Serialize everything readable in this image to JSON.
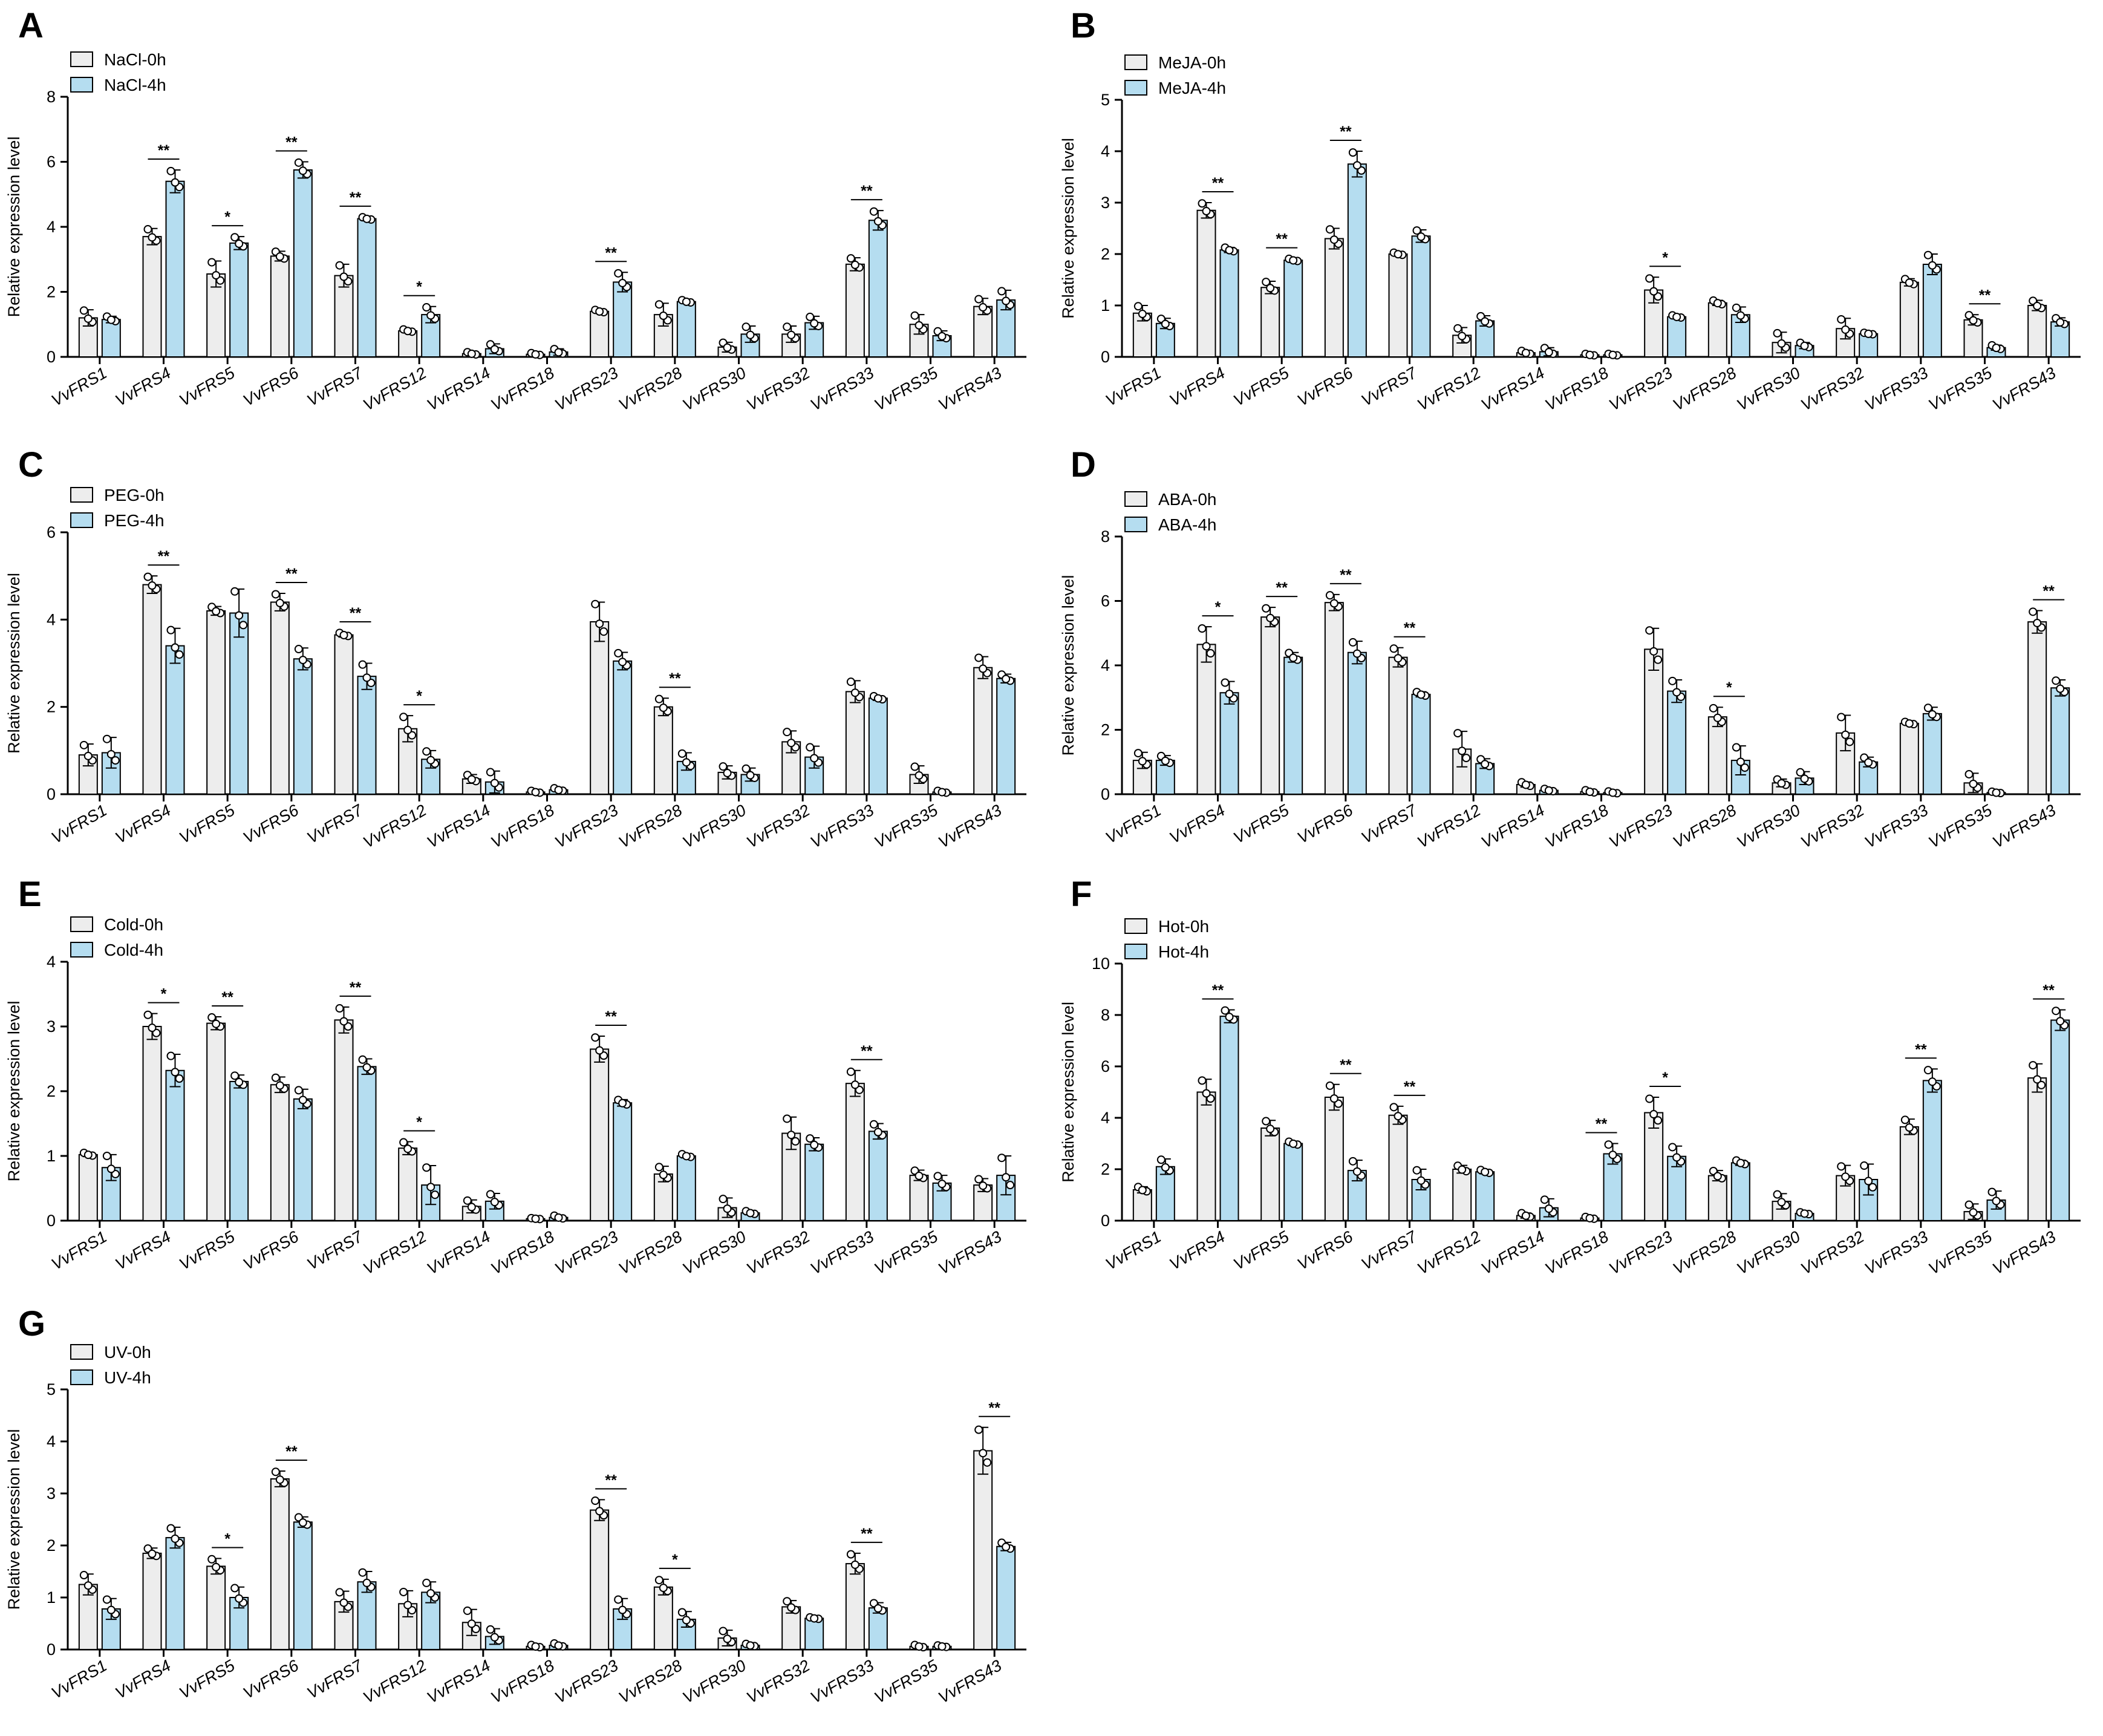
{
  "colors": {
    "bar0": "#ededed",
    "bar1": "#b5ddf0",
    "stroke": "#000000"
  },
  "categories": [
    "VvFRS1",
    "VvFRS4",
    "VvFRS5",
    "VvFRS6",
    "VvFRS7",
    "VvFRS12",
    "VvFRS14",
    "VvFRS18",
    "VvFRS23",
    "VvFRS28",
    "VvFRS30",
    "VvFRS32",
    "VvFRS33",
    "VvFRS35",
    "VvFRS43"
  ],
  "chart_data": [
    {
      "type": "bar",
      "panel": "A",
      "ylabel": "Relative expression level",
      "ylim": [
        0,
        8
      ],
      "yticks": [
        0,
        2,
        4,
        6,
        8
      ],
      "legend": [
        "NaCl-0h",
        "NaCl-4h"
      ],
      "series": [
        {
          "name": "NaCl-0h",
          "values": [
            1.2,
            3.7,
            2.55,
            3.1,
            2.5,
            0.8,
            0.1,
            0.08,
            1.4,
            1.3,
            0.3,
            0.7,
            2.85,
            1.0,
            1.55
          ],
          "errors": [
            0.25,
            0.25,
            0.4,
            0.15,
            0.35,
            0.05,
            0.05,
            0.04,
            0.05,
            0.35,
            0.15,
            0.25,
            0.2,
            0.3,
            0.25
          ]
        },
        {
          "name": "NaCl-4h",
          "values": [
            1.15,
            5.4,
            3.5,
            5.75,
            4.25,
            1.3,
            0.25,
            0.15,
            2.3,
            1.7,
            0.7,
            1.05,
            4.2,
            0.65,
            1.75
          ],
          " errors": [
            0.1,
            0.35,
            0.2,
            0.25,
            0.05,
            0.25,
            0.15,
            0.1,
            0.3,
            0.05,
            0.25,
            0.2,
            0.3,
            0.15,
            0.3
          ]
        }
      ],
      "significance": [
        {
          "index": 1,
          "label": "**"
        },
        {
          "index": 2,
          "label": "*"
        },
        {
          "index": 3,
          "label": "**"
        },
        {
          "index": 4,
          "label": "**"
        },
        {
          "index": 5,
          "label": "*"
        },
        {
          "index": 8,
          "label": "**"
        },
        {
          "index": 12,
          "label": "**"
        }
      ]
    },
    {
      "type": "bar",
      "panel": "B",
      "ylabel": "Relative expression level",
      "ylim": [
        0,
        5
      ],
      "yticks": [
        0,
        1,
        2,
        3,
        4,
        5
      ],
      "legend": [
        "MeJA-0h",
        "MeJA-4h"
      ],
      "series": [
        {
          "name": "MeJA-0h",
          "values": [
            0.85,
            2.85,
            1.35,
            2.3,
            2.0,
            0.42,
            0.08,
            0.04,
            1.3,
            1.05,
            0.28,
            0.55,
            1.45,
            0.72,
            1.0
          ],
          "errors": [
            0.15,
            0.15,
            0.12,
            0.2,
            0.03,
            0.15,
            0.04,
            0.02,
            0.25,
            0.05,
            0.2,
            0.2,
            0.07,
            0.1,
            0.1
          ]
        },
        {
          "name": "MeJA-4h",
          "values": [
            0.65,
            2.08,
            1.88,
            3.75,
            2.35,
            0.7,
            0.1,
            0.04,
            0.78,
            0.82,
            0.22,
            0.45,
            1.8,
            0.18,
            0.68
          ],
          " errors": [
            0.1,
            0.05,
            0.03,
            0.25,
            0.12,
            0.1,
            0.08,
            0.02,
            0.03,
            0.15,
            0.06,
            0.02,
            0.2,
            0.05,
            0.08
          ]
        }
      ],
      "significance": [
        {
          "index": 1,
          "label": "**"
        },
        {
          "index": 2,
          "label": "**"
        },
        {
          "index": 3,
          "label": "**"
        },
        {
          "index": 8,
          "label": "*"
        },
        {
          "index": 13,
          "label": "**"
        }
      ]
    },
    {
      "type": "bar",
      "panel": "C",
      "ylabel": "Relative expression level",
      "ylim": [
        0,
        6
      ],
      "yticks": [
        0,
        2,
        4,
        6
      ],
      "legend": [
        "PEG-0h",
        "PEG-4h"
      ],
      "series": [
        {
          "name": "PEG-0h",
          "values": [
            0.9,
            4.8,
            4.2,
            4.4,
            3.65,
            1.5,
            0.35,
            0.05,
            3.95,
            2.0,
            0.5,
            1.2,
            2.35,
            0.45,
            2.9
          ],
          "errors": [
            0.25,
            0.2,
            0.1,
            0.2,
            0.05,
            0.3,
            0.1,
            0.03,
            0.45,
            0.2,
            0.15,
            0.25,
            0.25,
            0.2,
            0.25
          ]
        },
        {
          "name": "PEG-4h",
          "values": [
            0.95,
            3.4,
            4.15,
            3.1,
            2.7,
            0.8,
            0.28,
            0.1,
            3.05,
            0.75,
            0.45,
            0.85,
            2.2,
            0.05,
            2.65
          ],
          " errors": [
            0.35,
            0.4,
            0.55,
            0.25,
            0.3,
            0.2,
            0.25,
            0.04,
            0.2,
            0.2,
            0.15,
            0.25,
            0.05,
            0.03,
            0.1
          ]
        }
      ],
      "significance": [
        {
          "index": 1,
          "label": "**"
        },
        {
          "index": 3,
          "label": "**"
        },
        {
          "index": 4,
          "label": "**"
        },
        {
          "index": 5,
          "label": "*"
        },
        {
          "index": 9,
          "label": "**"
        }
      ]
    },
    {
      "type": "bar",
      "panel": "D",
      "ylabel": "Relative expression level",
      "ylim": [
        0,
        8
      ],
      "yticks": [
        0,
        2,
        4,
        6,
        8
      ],
      "legend": [
        "ABA-0h",
        "ABA-4h"
      ],
      "series": [
        {
          "name": "ABA-0h",
          "values": [
            1.05,
            4.65,
            5.5,
            5.95,
            4.25,
            1.4,
            0.3,
            0.08,
            4.5,
            2.4,
            0.35,
            1.9,
            2.2,
            0.35,
            5.35
          ],
          "errors": [
            0.25,
            0.55,
            0.3,
            0.25,
            0.3,
            0.55,
            0.08,
            0.05,
            0.65,
            0.3,
            0.12,
            0.55,
            0.05,
            0.3,
            0.35
          ]
        },
        {
          "name": "ABA-4h",
          "values": [
            1.05,
            3.15,
            4.25,
            4.4,
            3.1,
            0.95,
            0.12,
            0.05,
            3.2,
            1.05,
            0.5,
            1.0,
            2.5,
            0.05,
            3.3
          ],
          " errors": [
            0.15,
            0.35,
            0.15,
            0.35,
            0.08,
            0.15,
            0.05,
            0.04,
            0.35,
            0.45,
            0.2,
            0.15,
            0.2,
            0.03,
            0.25
          ]
        }
      ],
      "significance": [
        {
          "index": 1,
          "label": "*"
        },
        {
          "index": 2,
          "label": "**"
        },
        {
          "index": 3,
          "label": "**"
        },
        {
          "index": 4,
          "label": "**"
        },
        {
          "index": 9,
          "label": "*"
        },
        {
          "index": 14,
          "label": "**"
        }
      ]
    },
    {
      "type": "bar",
      "panel": "E",
      "ylabel": "Relative expression level",
      "ylim": [
        0,
        4
      ],
      "yticks": [
        0,
        1,
        2,
        3,
        4
      ],
      "legend": [
        "Cold-0h",
        "Cold-4h"
      ],
      "series": [
        {
          "name": "Cold-0h",
          "values": [
            1.02,
            3.0,
            3.05,
            2.1,
            3.1,
            1.12,
            0.22,
            0.03,
            2.65,
            0.72,
            0.2,
            1.35,
            2.12,
            0.7,
            0.55
          ],
          "errors": [
            0.03,
            0.2,
            0.1,
            0.12,
            0.2,
            0.1,
            0.1,
            0.01,
            0.2,
            0.12,
            0.15,
            0.25,
            0.2,
            0.08,
            0.1
          ]
        },
        {
          "name": "Cold-4h",
          "values": [
            0.82,
            2.32,
            2.15,
            1.88,
            2.38,
            0.55,
            0.3,
            0.05,
            1.82,
            1.0,
            0.12,
            1.18,
            1.38,
            0.58,
            0.7
          ],
          " errors": [
            0.2,
            0.25,
            0.1,
            0.15,
            0.12,
            0.3,
            0.12,
            0.03,
            0.05,
            0.03,
            0.03,
            0.1,
            0.12,
            0.12,
            0.3
          ]
        }
      ],
      "significance": [
        {
          "index": 1,
          "label": "*"
        },
        {
          "index": 2,
          "label": "**"
        },
        {
          "index": 4,
          "label": "**"
        },
        {
          "index": 5,
          "label": "*"
        },
        {
          "index": 8,
          "label": "**"
        },
        {
          "index": 12,
          "label": "**"
        }
      ]
    },
    {
      "type": "bar",
      "panel": "F",
      "ylabel": "Relative expression level",
      "ylim": [
        0,
        10
      ],
      "yticks": [
        0,
        2,
        4,
        6,
        8,
        10
      ],
      "legend": [
        "Hot-0h",
        "Hot-4h"
      ],
      "series": [
        {
          "name": "Hot-0h",
          "values": [
            1.2,
            5.0,
            3.6,
            4.8,
            4.1,
            2.0,
            0.2,
            0.1,
            4.2,
            1.75,
            0.75,
            1.75,
            3.65,
            0.35,
            5.55
          ],
          "errors": [
            0.12,
            0.5,
            0.3,
            0.5,
            0.35,
            0.15,
            0.1,
            0.05,
            0.6,
            0.2,
            0.3,
            0.4,
            0.3,
            0.3,
            0.55
          ]
        },
        {
          "name": "Hot-4h",
          "values": [
            2.1,
            7.95,
            3.0,
            1.95,
            1.6,
            1.9,
            0.5,
            2.6,
            2.5,
            2.25,
            0.28,
            1.6,
            5.45,
            0.8,
            7.8
          ],
          " errors": [
            0.3,
            0.25,
            0.08,
            0.4,
            0.4,
            0.08,
            0.35,
            0.4,
            0.4,
            0.1,
            0.05,
            0.6,
            0.45,
            0.35,
            0.4
          ]
        }
      ],
      "significance": [
        {
          "index": 1,
          "label": "**"
        },
        {
          "index": 3,
          "label": "**"
        },
        {
          "index": 4,
          "label": "**"
        },
        {
          "index": 7,
          "label": "**"
        },
        {
          "index": 8,
          "label": "*"
        },
        {
          "index": 12,
          "label": "**"
        },
        {
          "index": 14,
          "label": "**"
        }
      ]
    },
    {
      "type": "bar",
      "panel": "G",
      "ylabel": "Relative expression level",
      "ylim": [
        0,
        5
      ],
      "yticks": [
        0,
        1,
        2,
        3,
        4,
        5
      ],
      "legend": [
        "UV-0h",
        "UV-4h"
      ],
      "series": [
        {
          "name": "UV-0h",
          "values": [
            1.25,
            1.85,
            1.6,
            3.28,
            0.92,
            0.88,
            0.52,
            0.06,
            2.68,
            1.2,
            0.22,
            0.82,
            1.65,
            0.06,
            3.82
          ],
          "errors": [
            0.2,
            0.1,
            0.15,
            0.15,
            0.2,
            0.25,
            0.25,
            0.03,
            0.2,
            0.15,
            0.15,
            0.12,
            0.2,
            0.03,
            0.45
          ]
        },
        {
          "name": "UV-4h",
          "values": [
            0.78,
            2.15,
            1.0,
            2.45,
            1.3,
            1.1,
            0.25,
            0.08,
            0.78,
            0.58,
            0.08,
            0.6,
            0.8,
            0.06,
            1.98
          ],
          " errors": [
            0.2,
            0.2,
            0.2,
            0.1,
            0.2,
            0.2,
            0.15,
            0.04,
            0.2,
            0.15,
            0.03,
            0.02,
            0.1,
            0.02,
            0.08
          ]
        }
      ],
      "significance": [
        {
          "index": 2,
          "label": "*"
        },
        {
          "index": 3,
          "label": "**"
        },
        {
          "index": 8,
          "label": "**"
        },
        {
          "index": 9,
          "label": "*"
        },
        {
          "index": 12,
          "label": "**"
        },
        {
          "index": 14,
          "label": "**"
        }
      ]
    }
  ]
}
